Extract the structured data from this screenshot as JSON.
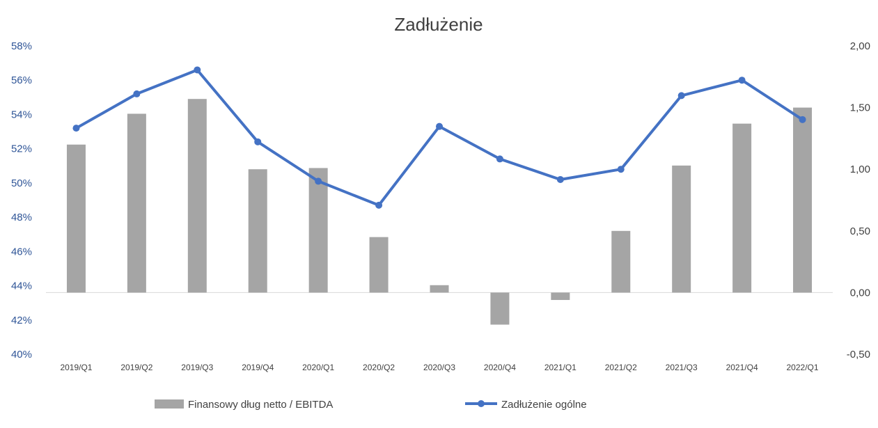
{
  "chart_data": {
    "type": "bar+line",
    "title": "Zadłużenie",
    "categories": [
      "2019/Q1",
      "2019/Q2",
      "2019/Q3",
      "2019/Q4",
      "2020/Q1",
      "2020/Q2",
      "2020/Q3",
      "2020/Q4",
      "2021/Q1",
      "2021/Q2",
      "2021/Q3",
      "2021/Q4",
      "2022/Q1"
    ],
    "y_left": {
      "min": 0.4,
      "max": 0.58,
      "ticks": [
        "58%",
        "56%",
        "54%",
        "52%",
        "50%",
        "48%",
        "46%",
        "44%",
        "42%",
        "40%"
      ],
      "tick_values": [
        0.58,
        0.56,
        0.54,
        0.52,
        0.5,
        0.48,
        0.46,
        0.44,
        0.42,
        0.4
      ]
    },
    "y_right": {
      "min": -0.5,
      "max": 2.0,
      "ticks": [
        "2,00",
        "1,50",
        "1,00",
        "0,50",
        "0,00",
        "-0,50"
      ],
      "tick_values": [
        2.0,
        1.5,
        1.0,
        0.5,
        0.0,
        -0.5
      ]
    },
    "grid": false,
    "legend_position": "bottom",
    "series": [
      {
        "name": "Finansowy dług netto / EBITDA",
        "type": "bar",
        "axis": "right",
        "color": "#a5a5a5",
        "values": [
          1.2,
          1.45,
          1.57,
          1.0,
          1.01,
          0.45,
          0.06,
          -0.26,
          -0.06,
          0.5,
          1.03,
          1.37,
          1.5
        ]
      },
      {
        "name": "Zadłużenie ogólne",
        "type": "line",
        "axis": "left",
        "color": "#4472c4",
        "values": [
          0.532,
          0.552,
          0.566,
          0.524,
          0.501,
          0.487,
          0.533,
          0.514,
          0.502,
          0.508,
          0.551,
          0.56,
          0.537
        ]
      }
    ]
  }
}
